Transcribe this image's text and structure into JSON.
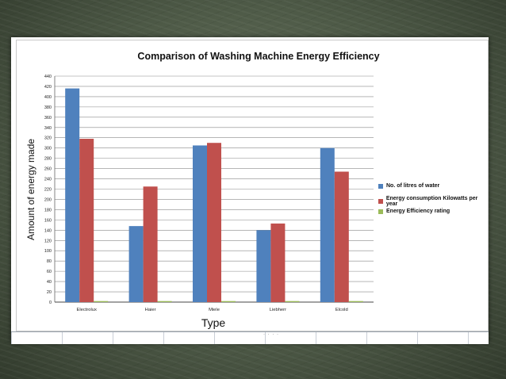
{
  "chart_data": {
    "type": "bar",
    "title": "Comparison of Washing Machine Energy Efficiency",
    "xlabel": "Type",
    "ylabel": "Amount of energy made",
    "categories": [
      "Electrolux",
      "Haier",
      "Miele",
      "Liebherr",
      "Elcold"
    ],
    "ylim": [
      0,
      440
    ],
    "yticks": [
      0,
      20,
      40,
      60,
      80,
      100,
      120,
      140,
      160,
      180,
      200,
      220,
      240,
      260,
      280,
      300,
      320,
      340,
      360,
      380,
      400,
      420,
      440
    ],
    "grid": true,
    "legend_position": "right",
    "series": [
      {
        "name": "No. of litres of water",
        "color": "#4f81bd",
        "values": [
          416,
          148,
          305,
          140,
          300
        ]
      },
      {
        "name": "Energy consumption Kilowatts per year",
        "color": "#c0504d",
        "values": [
          318,
          225,
          310,
          153,
          254
        ]
      },
      {
        "name": "Energy Efficiency rating",
        "color": "#9bbb59",
        "values": [
          2,
          2,
          2,
          2,
          2
        ]
      }
    ]
  }
}
